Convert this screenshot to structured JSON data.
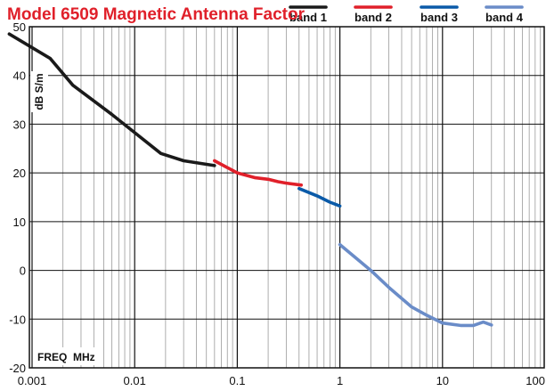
{
  "chart_data": {
    "type": "line",
    "title": "Model 6509 Magnetic Antenna Factor",
    "xlabel": "FREQ  MHz",
    "ylabel": "dB S/m",
    "x_scale": "log",
    "xlim": [
      0.0006,
      100
    ],
    "ylim": [
      -20,
      50
    ],
    "x_ticks": [
      {
        "value": 0.001,
        "label": "0.001"
      },
      {
        "value": 0.01,
        "label": "0.01"
      },
      {
        "value": 0.1,
        "label": "0.1"
      },
      {
        "value": 1,
        "label": "1"
      },
      {
        "value": 10,
        "label": "10"
      },
      {
        "value": 100,
        "label": "100"
      }
    ],
    "y_ticks": [
      {
        "value": 50,
        "label": "50"
      },
      {
        "value": 40,
        "label": "40"
      },
      {
        "value": 30,
        "label": "30"
      },
      {
        "value": 20,
        "label": "20"
      },
      {
        "value": 10,
        "label": "10"
      },
      {
        "value": 0,
        "label": "0"
      },
      {
        "value": -10,
        "label": "-10"
      },
      {
        "value": -20,
        "label": "-20"
      }
    ],
    "grid": true,
    "legend_position": "top-right",
    "series": [
      {
        "name": "band 1",
        "color": "#1a1a1a",
        "x": [
          0.0006,
          0.0015,
          0.0025,
          0.006,
          0.018,
          0.03,
          0.06
        ],
        "y": [
          48.5,
          43.5,
          38,
          32,
          24,
          22.5,
          21.5
        ]
      },
      {
        "name": "band 2",
        "color": "#e0202a",
        "x": [
          0.06,
          0.1,
          0.15,
          0.2,
          0.25,
          0.3,
          0.42
        ],
        "y": [
          22.5,
          20,
          19,
          18.7,
          18.2,
          17.9,
          17.5
        ]
      },
      {
        "name": "band 3",
        "color": "#0a5aa8",
        "x": [
          0.4,
          0.6,
          0.8,
          1.0
        ],
        "y": [
          16.8,
          15.3,
          14,
          13.2
        ]
      },
      {
        "name": "band 4",
        "color": "#6a8cc8",
        "x": [
          1.0,
          2.0,
          3.0,
          5.0,
          7.0,
          10.0,
          15.0,
          20.0,
          25.0,
          30.0
        ],
        "y": [
          5.3,
          0,
          -3.5,
          -7.5,
          -9.2,
          -10.8,
          -11.3,
          -11.3,
          -10.6,
          -11.2
        ]
      }
    ]
  }
}
